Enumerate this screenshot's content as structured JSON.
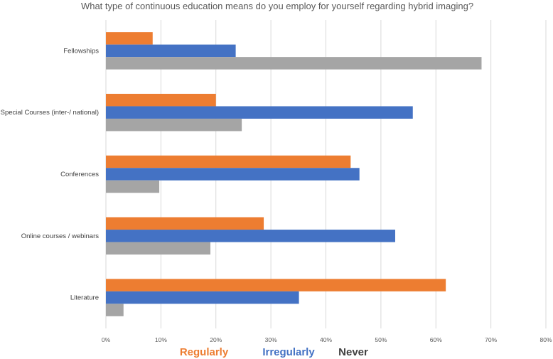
{
  "chart_data": {
    "type": "bar",
    "orientation": "horizontal",
    "title": "What type of continuous education means do you employ for yourself regarding hybrid imaging?",
    "categories": [
      "Fellowships",
      "Special Courses (inter-/ national)",
      "Conferences",
      "Online courses / webinars",
      "Literature"
    ],
    "series": [
      {
        "name": "Regularly",
        "color": "#ED7D31",
        "values": [
          8.5,
          20,
          44.5,
          28.7,
          61.8
        ]
      },
      {
        "name": "Irregularly",
        "color": "#4472C4",
        "values": [
          23.6,
          55.8,
          46.1,
          52.6,
          35.1
        ]
      },
      {
        "name": "Never",
        "color": "#A5A5A5",
        "values": [
          68.3,
          24.7,
          9.7,
          19,
          3.2
        ]
      }
    ],
    "xlim": [
      0,
      80
    ],
    "xticks": [
      "0%",
      "10%",
      "20%",
      "30%",
      "40%",
      "50%",
      "60%",
      "70%",
      "80%"
    ],
    "grid": true,
    "legend_position": "bottom",
    "legend_text_colors": {
      "Regularly": "#ED7D31",
      "Irregularly": "#4472C4",
      "Never": "#404040"
    }
  }
}
